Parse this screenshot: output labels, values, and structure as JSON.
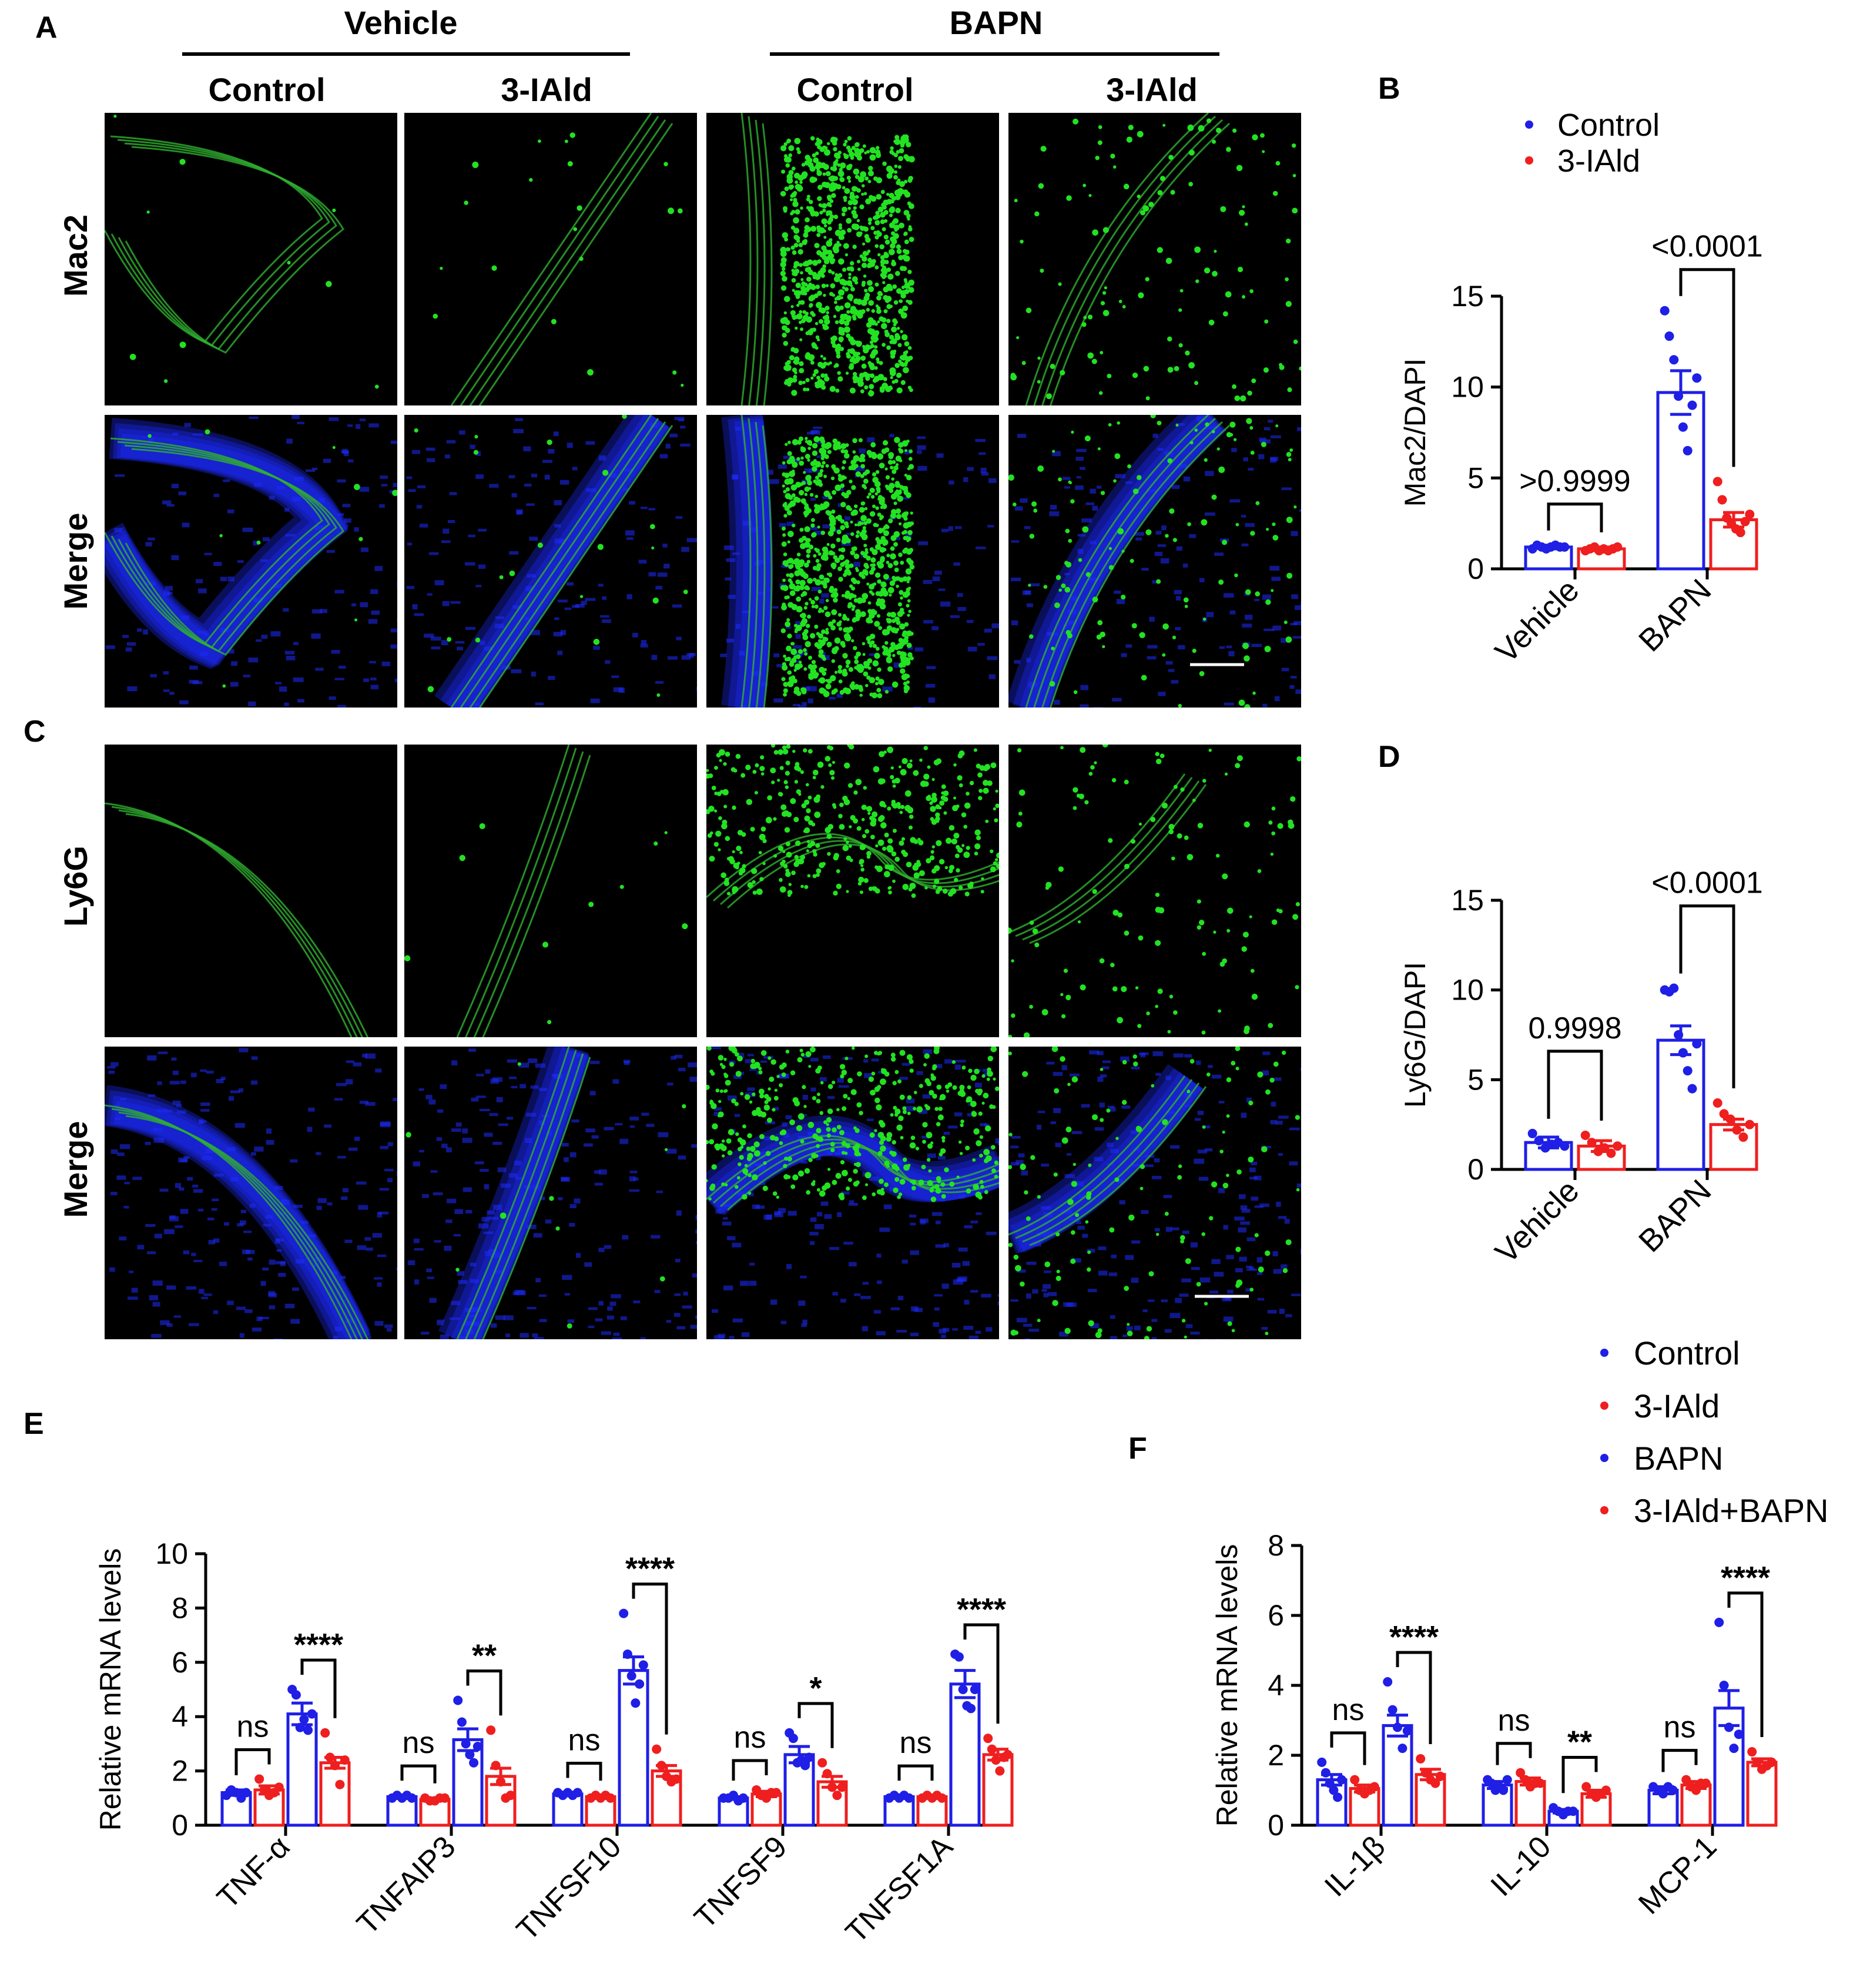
{
  "colors": {
    "control": "#1f1fe6",
    "treated": "#ef1f1f",
    "micro_bg": "#000000",
    "green": "#22e222",
    "blue": "#1e2cff"
  },
  "panels": {
    "A": "A",
    "B": "B",
    "C": "C",
    "D": "D",
    "E": "E",
    "F": "F"
  },
  "micrographs": {
    "group_headers": [
      "Vehicle",
      "BAPN"
    ],
    "column_labels": [
      "Control",
      "3-IAld",
      "Control",
      "3-IAld"
    ],
    "row_labels_A": [
      "Mac2",
      "Merge"
    ],
    "row_labels_C": [
      "Ly6G",
      "Merge"
    ]
  },
  "legend_bd": [
    "Control",
    "3-IAld"
  ],
  "legend_ef": [
    "Control",
    "3-IAld",
    "BAPN",
    "3-IAld+BAPN"
  ],
  "chart_data": [
    {
      "panel": "B",
      "type": "bar",
      "categories": [
        "Vehicle",
        "BAPN"
      ],
      "ylabel": "Mac2/DAPI",
      "ylim": [
        0,
        15
      ],
      "yticks": [
        "0",
        "5",
        "10",
        "15"
      ],
      "series": [
        {
          "name": "Control",
          "values": [
            1.2,
            9.7
          ],
          "sem": [
            0.1,
            1.2
          ],
          "points": [
            [
              1.1,
              1.3,
              1.2,
              1.1,
              1.2,
              1.3,
              1.2,
              1.2
            ],
            [
              14.2,
              12.8,
              11.5,
              9.5,
              7.8,
              6.5,
              9.0,
              10.5
            ]
          ]
        },
        {
          "name": "3-IAld",
          "values": [
            1.1,
            2.7
          ],
          "sem": [
            0.1,
            0.4
          ],
          "points": [
            [
              1.0,
              1.1,
              1.2,
              1.0,
              1.1,
              1.0,
              1.1,
              1.2
            ],
            [
              4.8,
              3.8,
              2.8,
              2.5,
              2.2,
              2.0,
              2.6,
              3.0
            ]
          ]
        }
      ],
      "comparisons": [
        {
          "category": 0,
          "label": ">0.9999"
        },
        {
          "category": 1,
          "label": "<0.0001"
        }
      ]
    },
    {
      "panel": "D",
      "type": "bar",
      "categories": [
        "Vehicle",
        "BAPN"
      ],
      "ylabel": "Ly6G/DAPI",
      "ylim": [
        0,
        15
      ],
      "yticks": [
        "0",
        "5",
        "10",
        "15"
      ],
      "series": [
        {
          "name": "Control",
          "values": [
            1.5,
            7.2
          ],
          "sem": [
            0.3,
            0.8
          ],
          "points": [
            [
              2.0,
              1.6,
              1.2,
              1.4,
              1.5,
              1.3
            ],
            [
              10.0,
              9.9,
              10.1,
              7.5,
              6.5,
              5.5,
              4.5,
              7.0
            ]
          ]
        },
        {
          "name": "3-IAld",
          "values": [
            1.3,
            2.5
          ],
          "sem": [
            0.3,
            0.3
          ],
          "points": [
            [
              1.9,
              1.5,
              1.0,
              1.2,
              0.9,
              1.3
            ],
            [
              3.7,
              3.1,
              2.8,
              2.2,
              1.8,
              2.5
            ]
          ]
        }
      ],
      "comparisons": [
        {
          "category": 0,
          "label": "0.9998"
        },
        {
          "category": 1,
          "label": "<0.0001"
        }
      ]
    },
    {
      "panel": "E",
      "type": "bar",
      "categories": [
        "TNF-α",
        "TNFAIP3",
        "TNFSF10",
        "TNFSF9",
        "TNFSF1A"
      ],
      "ylabel": "Relative mRNA levels",
      "ylim": [
        0,
        10
      ],
      "yticks": [
        "0",
        "2",
        "4",
        "6",
        "8",
        "10"
      ],
      "series": [
        {
          "name": "Control",
          "values": [
            1.2,
            1.05,
            1.15,
            1.0,
            1.05
          ],
          "sem": [
            0.1,
            0.05,
            0.05,
            0.05,
            0.05
          ],
          "points": [
            [
              1.1,
              1.3,
              1.2,
              1.0,
              1.2
            ],
            [
              1.0,
              1.1,
              1.0,
              1.1,
              1.0
            ],
            [
              1.2,
              1.1,
              1.2,
              1.1,
              1.2
            ],
            [
              1.0,
              1.0,
              1.1,
              0.9,
              1.0
            ],
            [
              1.0,
              1.1,
              1.0,
              1.1,
              1.0
            ]
          ]
        },
        {
          "name": "3-IAld",
          "values": [
            1.3,
            0.95,
            1.05,
            1.15,
            1.05
          ],
          "sem": [
            0.15,
            0.05,
            0.05,
            0.1,
            0.05
          ],
          "points": [
            [
              1.7,
              1.3,
              1.1,
              1.2,
              1.4
            ],
            [
              1.0,
              0.9,
              0.9,
              1.0,
              1.0
            ],
            [
              1.0,
              1.1,
              1.0,
              1.1,
              1.0
            ],
            [
              1.3,
              1.1,
              1.0,
              1.2,
              1.2
            ],
            [
              1.0,
              1.1,
              1.0,
              1.1,
              1.0
            ]
          ]
        },
        {
          "name": "BAPN",
          "values": [
            4.1,
            3.15,
            5.7,
            2.6,
            5.2
          ],
          "sem": [
            0.4,
            0.4,
            0.5,
            0.3,
            0.5
          ],
          "points": [
            [
              5.0,
              4.8,
              3.6,
              3.9,
              3.5,
              4.1
            ],
            [
              4.6,
              3.8,
              3.0,
              2.6,
              2.3,
              2.9
            ],
            [
              7.8,
              6.3,
              5.5,
              4.5,
              5.2,
              5.9
            ],
            [
              3.4,
              3.2,
              2.3,
              2.4,
              2.2,
              2.5
            ],
            [
              6.3,
              6.2,
              5.0,
              4.4,
              4.3,
              5.0
            ]
          ]
        },
        {
          "name": "3-IAld+BAPN",
          "values": [
            2.3,
            1.8,
            2.0,
            1.6,
            2.6
          ],
          "sem": [
            0.2,
            0.3,
            0.2,
            0.2,
            0.2
          ],
          "points": [
            [
              3.4,
              2.5,
              2.2,
              1.5,
              2.4
            ],
            [
              3.5,
              2.2,
              1.6,
              1.0,
              1.1
            ],
            [
              2.8,
              2.2,
              1.8,
              1.6,
              1.7
            ],
            [
              2.3,
              1.9,
              1.4,
              1.1,
              1.4
            ],
            [
              3.2,
              2.8,
              2.4,
              2.0,
              2.5,
              2.6
            ]
          ]
        }
      ],
      "comparisons": [
        {
          "category": 0,
          "pair": "control",
          "label": "ns"
        },
        {
          "category": 0,
          "pair": "bapn",
          "label": "****"
        },
        {
          "category": 1,
          "pair": "control",
          "label": "ns"
        },
        {
          "category": 1,
          "pair": "bapn",
          "label": "**"
        },
        {
          "category": 2,
          "pair": "control",
          "label": "ns"
        },
        {
          "category": 2,
          "pair": "bapn",
          "label": "****"
        },
        {
          "category": 3,
          "pair": "control",
          "label": "ns"
        },
        {
          "category": 3,
          "pair": "bapn",
          "label": "*"
        },
        {
          "category": 4,
          "pair": "control",
          "label": "ns"
        },
        {
          "category": 4,
          "pair": "bapn",
          "label": "****"
        }
      ]
    },
    {
      "panel": "F",
      "type": "bar",
      "categories": [
        "IL-1β",
        "IL-10",
        "MCP-1"
      ],
      "ylabel": "Relative mRNA levels",
      "ylim": [
        0,
        8
      ],
      "yticks": [
        "0",
        "2",
        "4",
        "6",
        "8"
      ],
      "series": [
        {
          "name": "Control",
          "values": [
            1.3,
            1.15,
            1.0
          ],
          "sem": [
            0.15,
            0.1,
            0.1
          ],
          "points": [
            [
              1.8,
              1.5,
              1.2,
              1.0,
              0.8,
              1.3
            ],
            [
              1.3,
              1.2,
              1.0,
              1.1,
              1.0,
              1.3
            ],
            [
              1.1,
              1.0,
              0.9,
              1.1,
              1.0
            ]
          ]
        },
        {
          "name": "3-IAld",
          "values": [
            1.05,
            1.25,
            1.15
          ],
          "sem": [
            0.1,
            0.1,
            0.1
          ],
          "points": [
            [
              1.3,
              1.0,
              0.9,
              1.0,
              1.1
            ],
            [
              1.5,
              1.3,
              1.1,
              1.2,
              1.2
            ],
            [
              1.3,
              1.1,
              1.0,
              1.2,
              1.2
            ]
          ]
        },
        {
          "name": "BAPN",
          "values": [
            2.85,
            0.4,
            3.35
          ],
          "sem": [
            0.3,
            0.05,
            0.5
          ],
          "points": [
            [
              4.1,
              3.3,
              2.8,
              2.2,
              2.7
            ],
            [
              0.5,
              0.4,
              0.3,
              0.4,
              0.4
            ],
            [
              5.8,
              4.0,
              2.8,
              2.2,
              2.6
            ]
          ]
        },
        {
          "name": "3-IAld+BAPN",
          "values": [
            1.45,
            0.9,
            1.8
          ],
          "sem": [
            0.15,
            0.1,
            0.1
          ],
          "points": [
            [
              1.9,
              1.5,
              1.3,
              1.2,
              1.4
            ],
            [
              1.1,
              0.9,
              0.8,
              0.9,
              1.0
            ],
            [
              2.1,
              1.8,
              1.6,
              1.7,
              1.8
            ]
          ]
        }
      ],
      "comparisons": [
        {
          "category": 0,
          "pair": "control",
          "label": "ns"
        },
        {
          "category": 0,
          "pair": "bapn",
          "label": "****"
        },
        {
          "category": 1,
          "pair": "control",
          "label": "ns"
        },
        {
          "category": 1,
          "pair": "bapn",
          "label": "**"
        },
        {
          "category": 2,
          "pair": "control",
          "label": "ns"
        },
        {
          "category": 2,
          "pair": "bapn",
          "label": "****"
        }
      ]
    }
  ]
}
